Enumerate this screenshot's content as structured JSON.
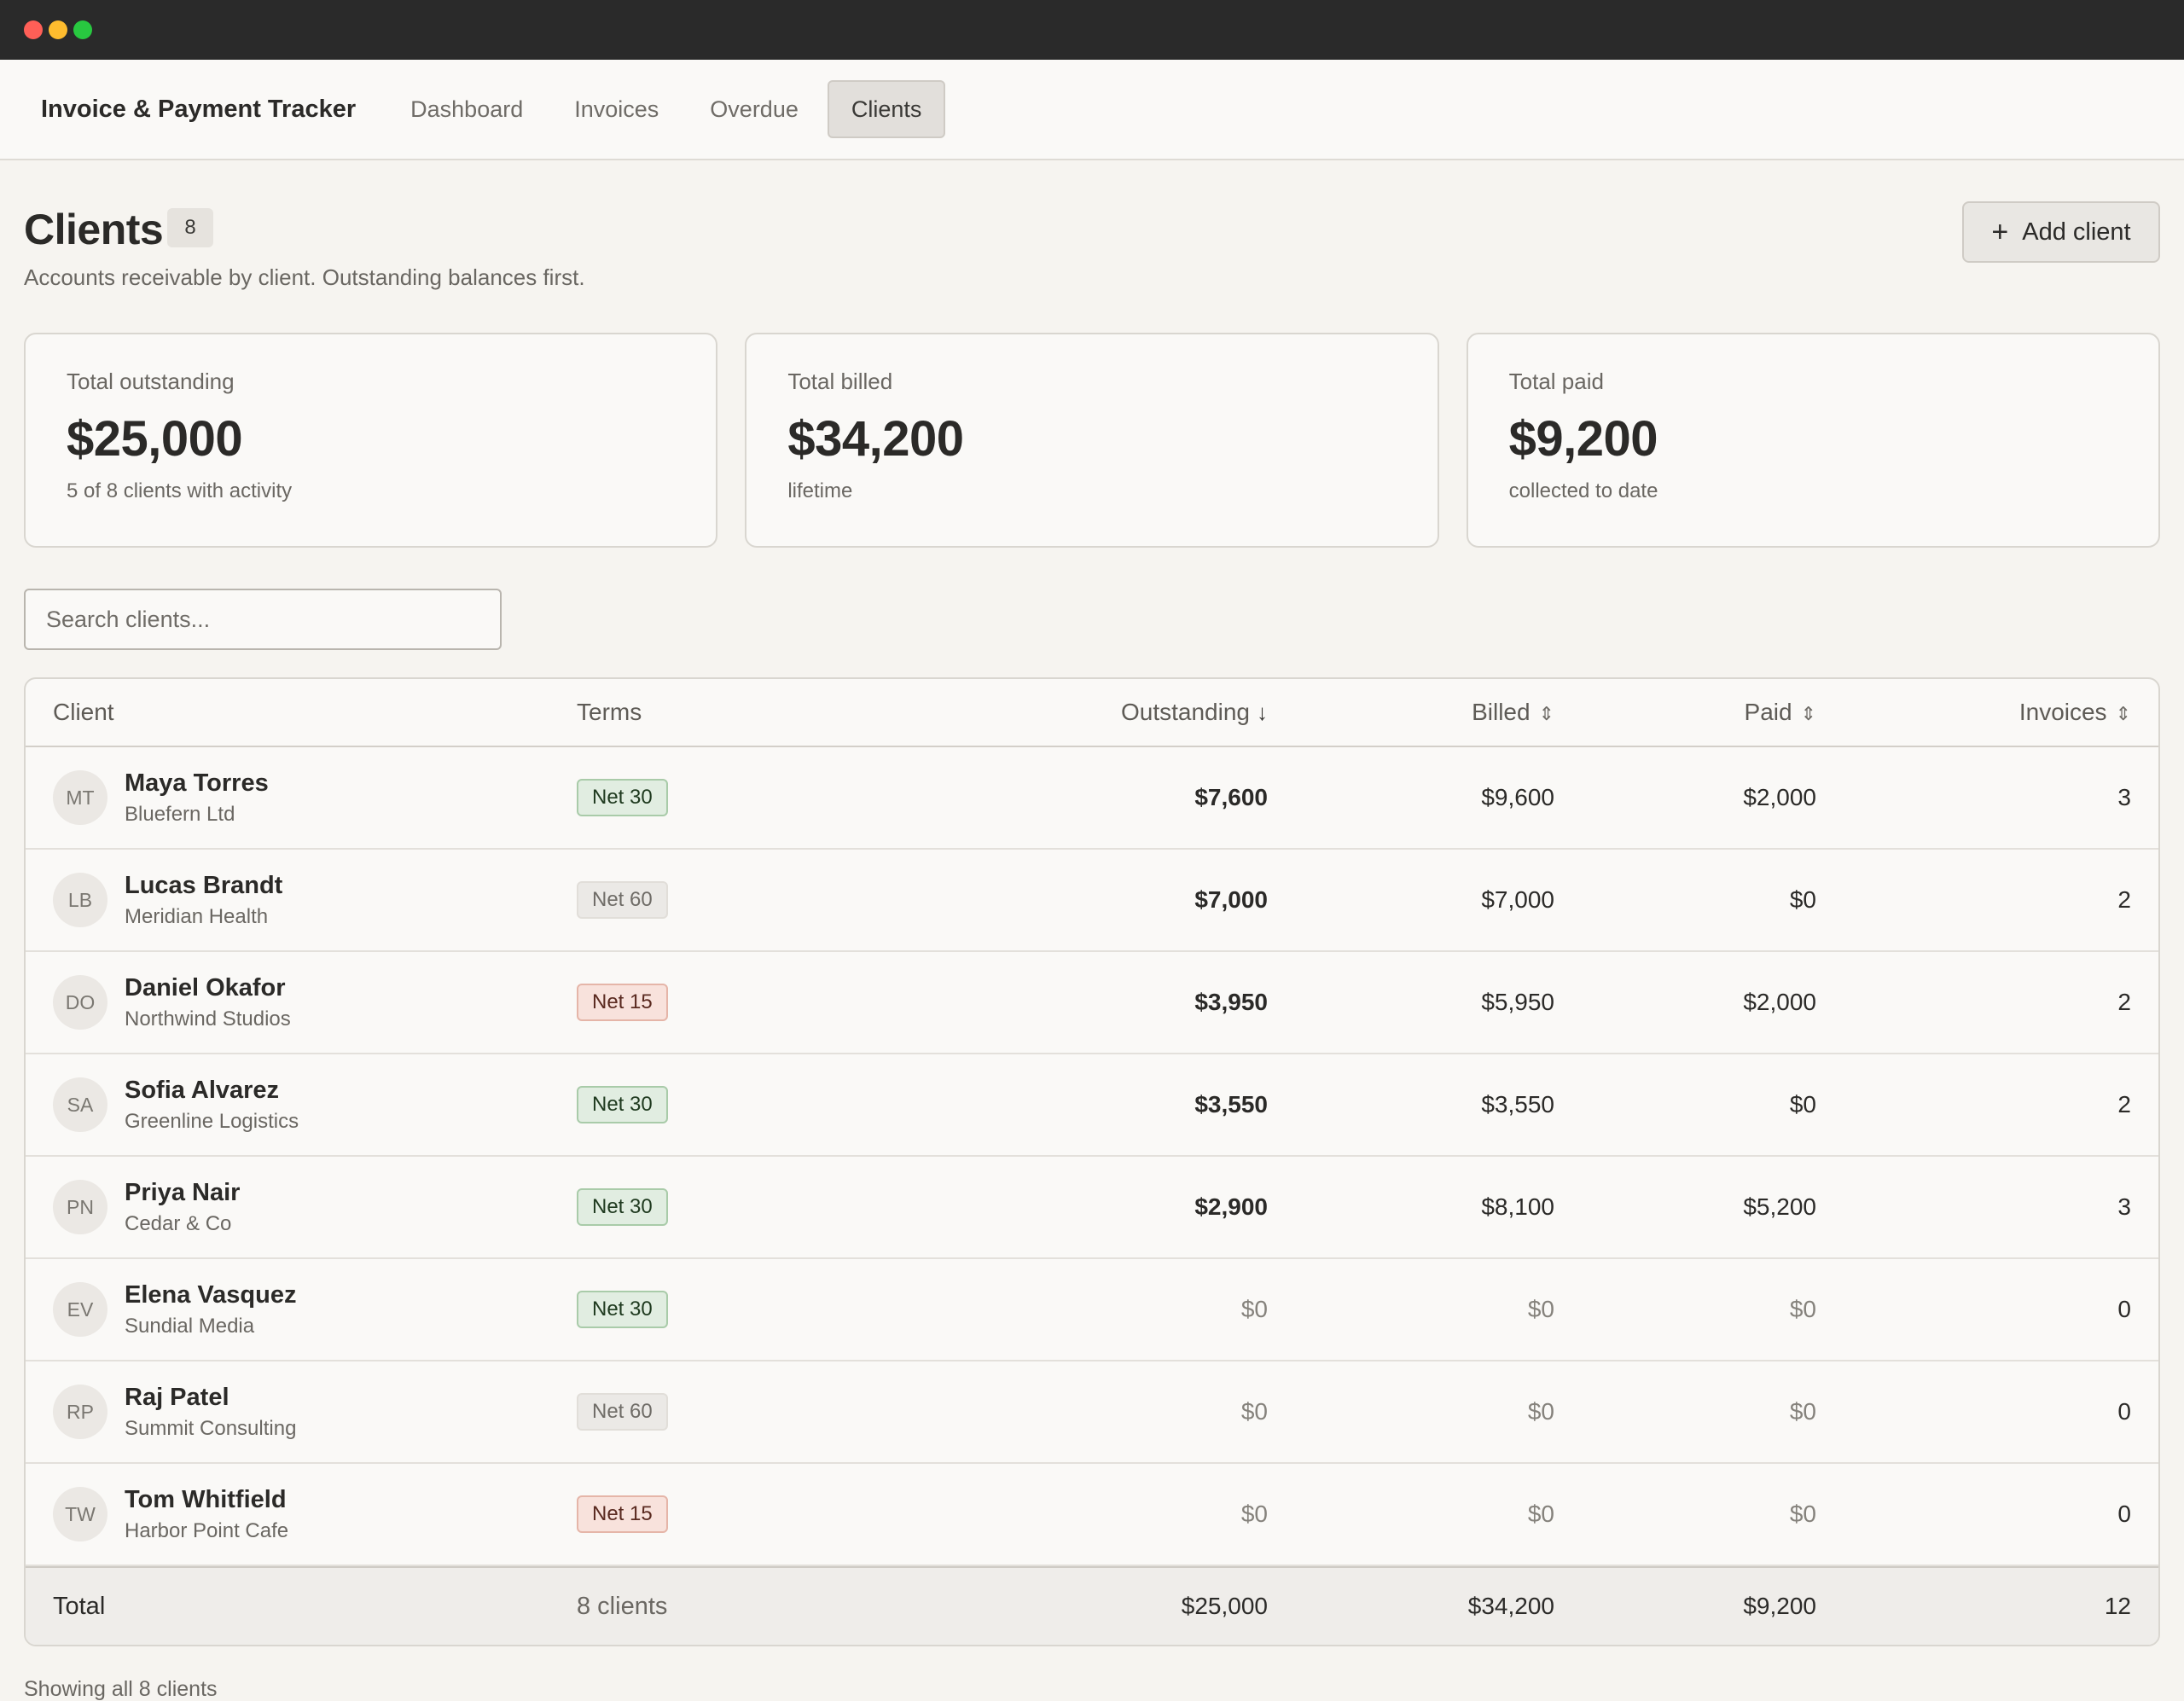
{
  "nav": {
    "brand": "Invoice & Payment Tracker",
    "tabs": [
      {
        "label": "Dashboard",
        "active": false
      },
      {
        "label": "Invoices",
        "active": false
      },
      {
        "label": "Overdue",
        "active": false
      },
      {
        "label": "Clients",
        "active": true
      }
    ]
  },
  "page": {
    "title": "Clients",
    "count": "8",
    "subtitle": "Accounts receivable by client. Outstanding balances first.",
    "add_button": "Add client",
    "search_placeholder": "Search clients...",
    "footer_note": "Showing all 8 clients"
  },
  "stats": [
    {
      "label": "Total outstanding",
      "value": "$25,000",
      "sub": "5 of 8 clients with activity"
    },
    {
      "label": "Total billed",
      "value": "$34,200",
      "sub": "lifetime"
    },
    {
      "label": "Total paid",
      "value": "$9,200",
      "sub": "collected to date"
    }
  ],
  "table": {
    "headers": {
      "client": "Client",
      "terms": "Terms",
      "outstanding": "Outstanding",
      "billed": "Billed",
      "paid": "Paid",
      "invoices": "Invoices"
    },
    "rows": [
      {
        "initials": "MT",
        "name": "Maya Torres",
        "company": "Bluefern Ltd",
        "terms": "Net 30",
        "outstanding": "$7,600",
        "billed": "$9,600",
        "paid": "$2,000",
        "invoices": "3"
      },
      {
        "initials": "LB",
        "name": "Lucas Brandt",
        "company": "Meridian Health",
        "terms": "Net 60",
        "outstanding": "$7,000",
        "billed": "$7,000",
        "paid": "$0",
        "invoices": "2"
      },
      {
        "initials": "DO",
        "name": "Daniel Okafor",
        "company": "Northwind Studios",
        "terms": "Net 15",
        "outstanding": "$3,950",
        "billed": "$5,950",
        "paid": "$2,000",
        "invoices": "2"
      },
      {
        "initials": "SA",
        "name": "Sofia Alvarez",
        "company": "Greenline Logistics",
        "terms": "Net 30",
        "outstanding": "$3,550",
        "billed": "$3,550",
        "paid": "$0",
        "invoices": "2"
      },
      {
        "initials": "PN",
        "name": "Priya Nair",
        "company": "Cedar & Co",
        "terms": "Net 30",
        "outstanding": "$2,900",
        "billed": "$8,100",
        "paid": "$5,200",
        "invoices": "3"
      },
      {
        "initials": "EV",
        "name": "Elena Vasquez",
        "company": "Sundial Media",
        "terms": "Net 30",
        "outstanding": "$0",
        "billed": "$0",
        "paid": "$0",
        "invoices": "0"
      },
      {
        "initials": "RP",
        "name": "Raj Patel",
        "company": "Summit Consulting",
        "terms": "Net 60",
        "outstanding": "$0",
        "billed": "$0",
        "paid": "$0",
        "invoices": "0"
      },
      {
        "initials": "TW",
        "name": "Tom Whitfield",
        "company": "Harbor Point Cafe",
        "terms": "Net 15",
        "outstanding": "$0",
        "billed": "$0",
        "paid": "$0",
        "invoices": "0"
      }
    ],
    "total": {
      "label": "Total",
      "clients": "8 clients",
      "outstanding": "$25,000",
      "billed": "$34,200",
      "paid": "$9,200",
      "invoices": "12"
    }
  }
}
